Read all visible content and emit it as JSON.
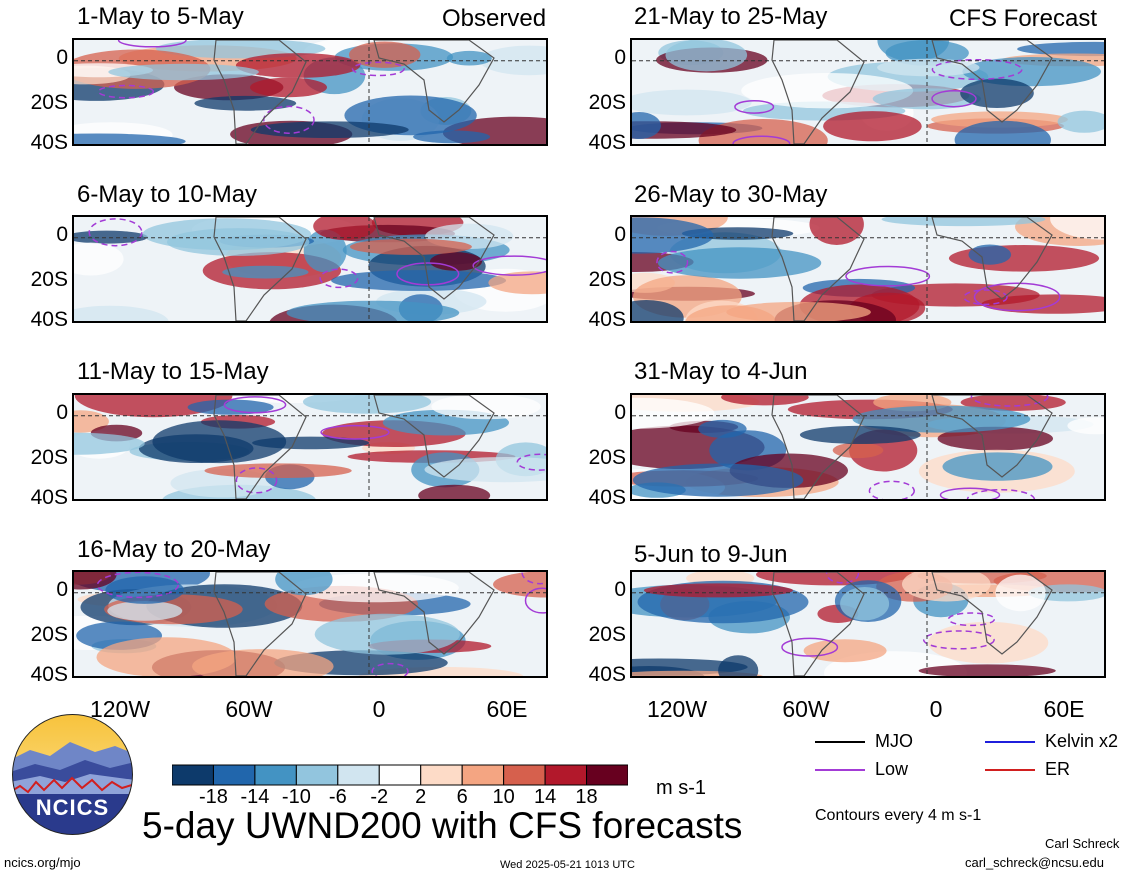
{
  "header": {
    "left_tag": "Observed",
    "right_tag": "CFS Forecast"
  },
  "panels_left": [
    {
      "label": "1-May to 5-May"
    },
    {
      "label": "6-May to 10-May"
    },
    {
      "label": "11-May to 15-May"
    },
    {
      "label": "16-May to 20-May"
    }
  ],
  "panels_right": [
    {
      "label": "21-May to 25-May"
    },
    {
      "label": "26-May to 30-May"
    },
    {
      "label": "31-May to 4-Jun"
    },
    {
      "label": "5-Jun to 9-Jun"
    }
  ],
  "axes": {
    "lat_ticks": [
      "0",
      "20S",
      "40S"
    ],
    "lon_ticks": [
      "120W",
      "60W",
      "0",
      "60E"
    ]
  },
  "colorbar": {
    "colors": [
      "#0d3a6b",
      "#2166ac",
      "#4393c3",
      "#92c5de",
      "#d1e5f0",
      "#ffffff",
      "#fddbc7",
      "#f4a582",
      "#d6604d",
      "#b2182b",
      "#67001f"
    ],
    "tick_labels": [
      "-18",
      "-14",
      "-10",
      "-6",
      "-2",
      "2",
      "6",
      "10",
      "14",
      "18"
    ],
    "units": "m s-1"
  },
  "legend": {
    "items": [
      {
        "label": "MJO",
        "color": "#000000"
      },
      {
        "label": "Kelvin x2",
        "color": "#1f1fdc"
      },
      {
        "label": "Low",
        "color": "#a33bd6"
      },
      {
        "label": "ER",
        "color": "#d11f1f"
      }
    ],
    "contour_note": "Contours every 4 m s-1"
  },
  "logo": {
    "text": "NCICS"
  },
  "footer": {
    "title": "5-day UWND200 with CFS forecasts",
    "site": "ncics.org/mjo",
    "timestamp": "Wed 2025-05-21 1013 UTC",
    "author": "Carl Schreck",
    "email": "carl_schreck@ncsu.edu"
  },
  "chart_data": {
    "type": "heatmap",
    "variable": "UWND200",
    "lat_range": [
      "10N",
      "40S"
    ],
    "lon_range": [
      "150W",
      "90E"
    ],
    "color_levels": [
      -18,
      -14,
      -10,
      -6,
      -2,
      2,
      6,
      10,
      14,
      18
    ],
    "units": "m s-1"
  }
}
